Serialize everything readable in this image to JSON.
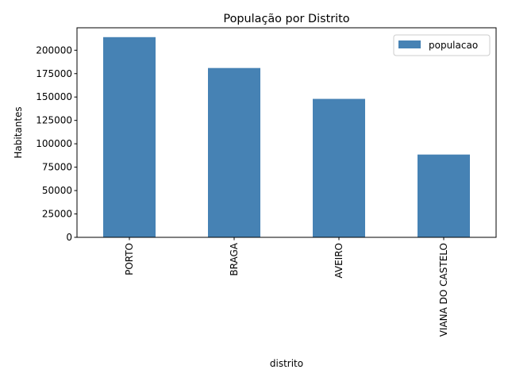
{
  "chart_data": {
    "type": "bar",
    "title": "População por Distrito",
    "xlabel": "distrito",
    "ylabel": "Habitantes",
    "categories": [
      "PORTO",
      "BRAGA",
      "AVEIRO",
      "VIANA DO CASTELO"
    ],
    "series": [
      {
        "name": "populacao",
        "values": [
          214000,
          181000,
          148000,
          88500
        ]
      }
    ],
    "ylim": [
      0,
      224000
    ],
    "yticks": [
      0,
      25000,
      50000,
      75000,
      100000,
      125000,
      150000,
      175000,
      200000
    ],
    "grid": false,
    "legend_position": "top-right",
    "colors": {
      "bar": "#4682b4"
    }
  }
}
